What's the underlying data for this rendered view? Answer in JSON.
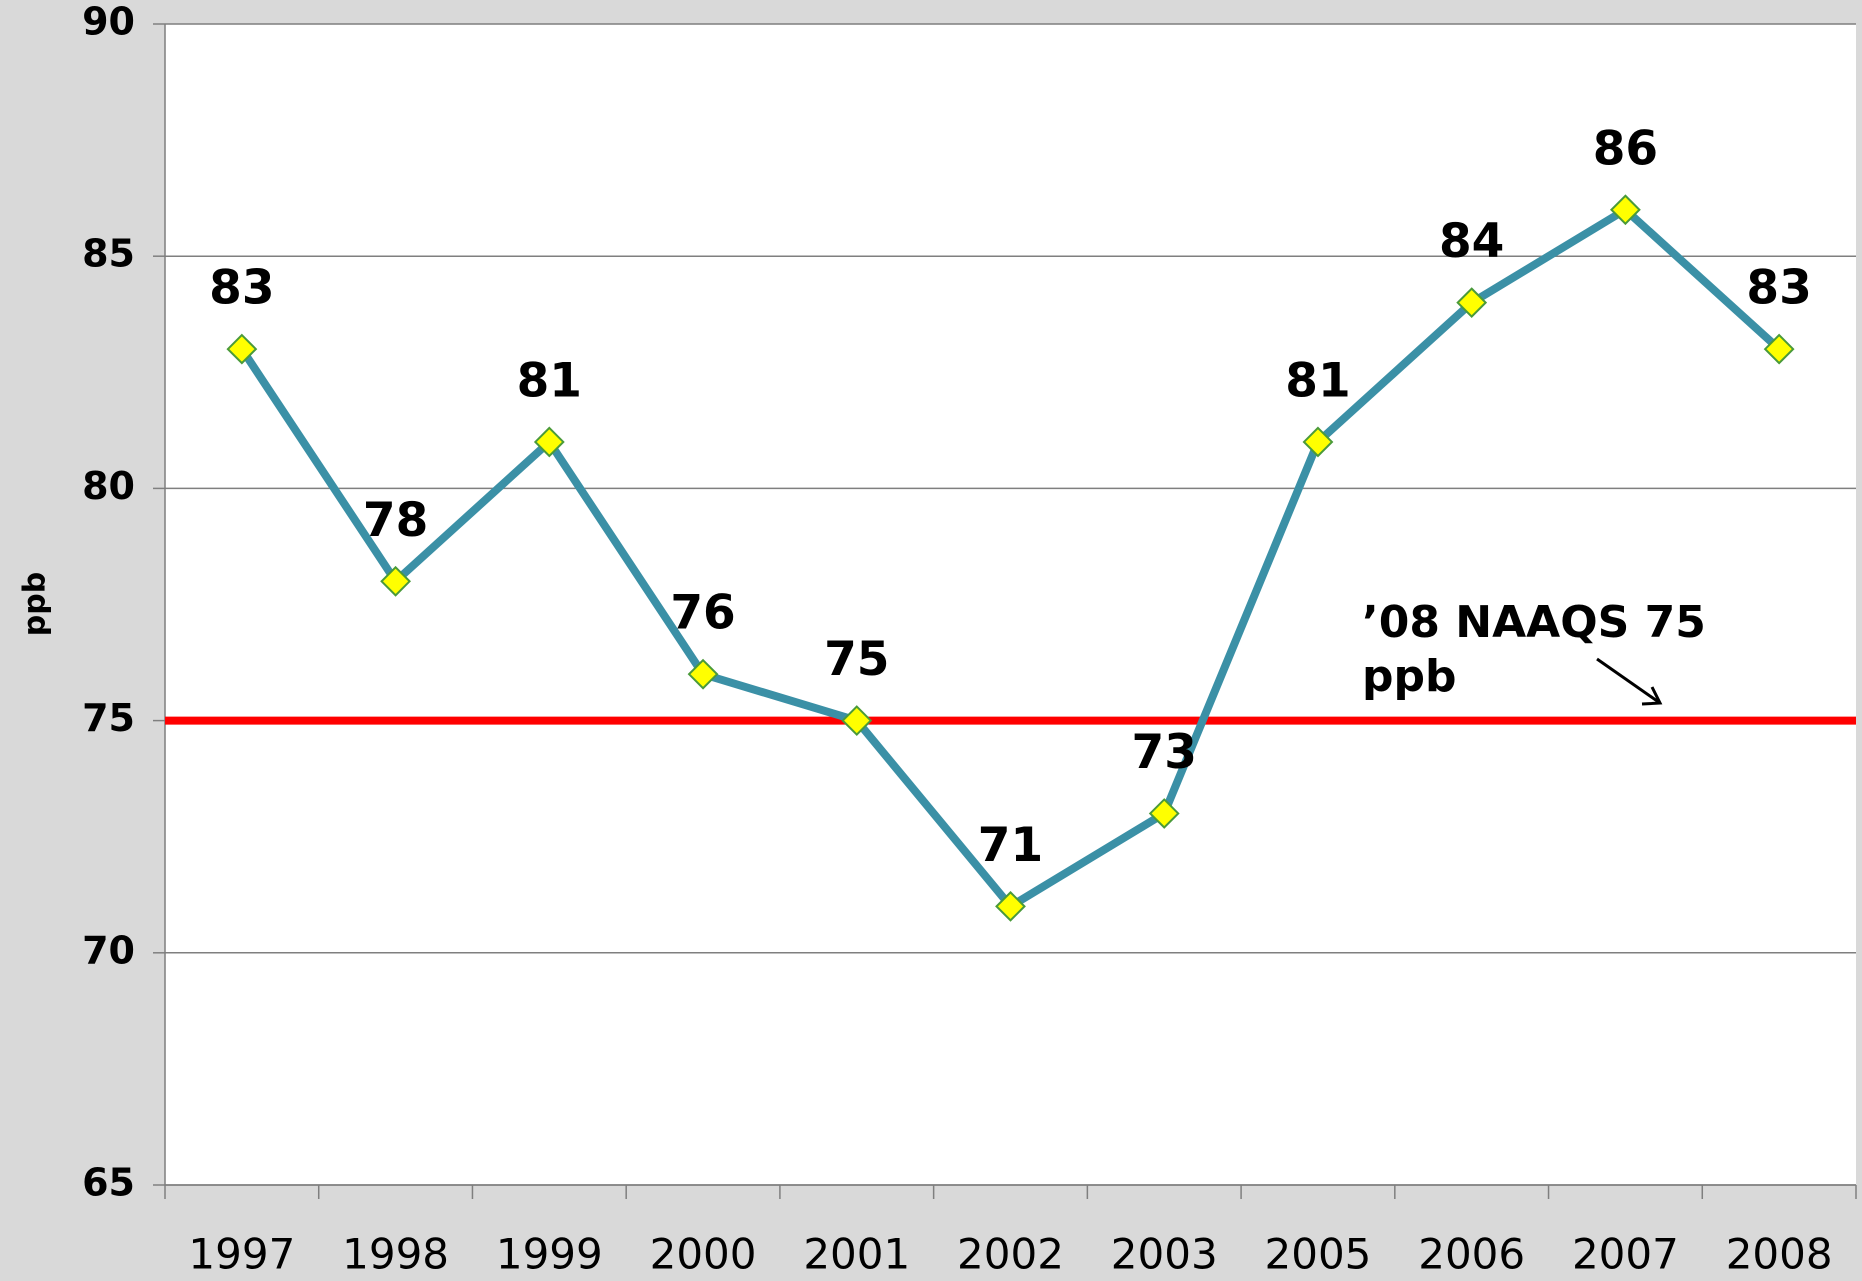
{
  "chart_data": {
    "type": "line",
    "y_label": "ppb",
    "categories": [
      "1997",
      "1998",
      "1999",
      "2000",
      "2001",
      "2002",
      "2003",
      "2005",
      "2006",
      "2007",
      "2008"
    ],
    "series": [
      {
        "color": "#3b90a6",
        "marker_color": "#ffff00",
        "values": [
          83,
          78,
          81,
          76,
          75,
          71,
          73,
          81,
          84,
          86,
          83
        ]
      }
    ],
    "ylim": [
      65,
      90
    ],
    "yticks": [
      65,
      70,
      75,
      80,
      85,
      90
    ],
    "grid": true,
    "reference_line": {
      "value": 75,
      "color": "#ff0000"
    },
    "annotation": "’08 NAAQS 75 ppb"
  }
}
